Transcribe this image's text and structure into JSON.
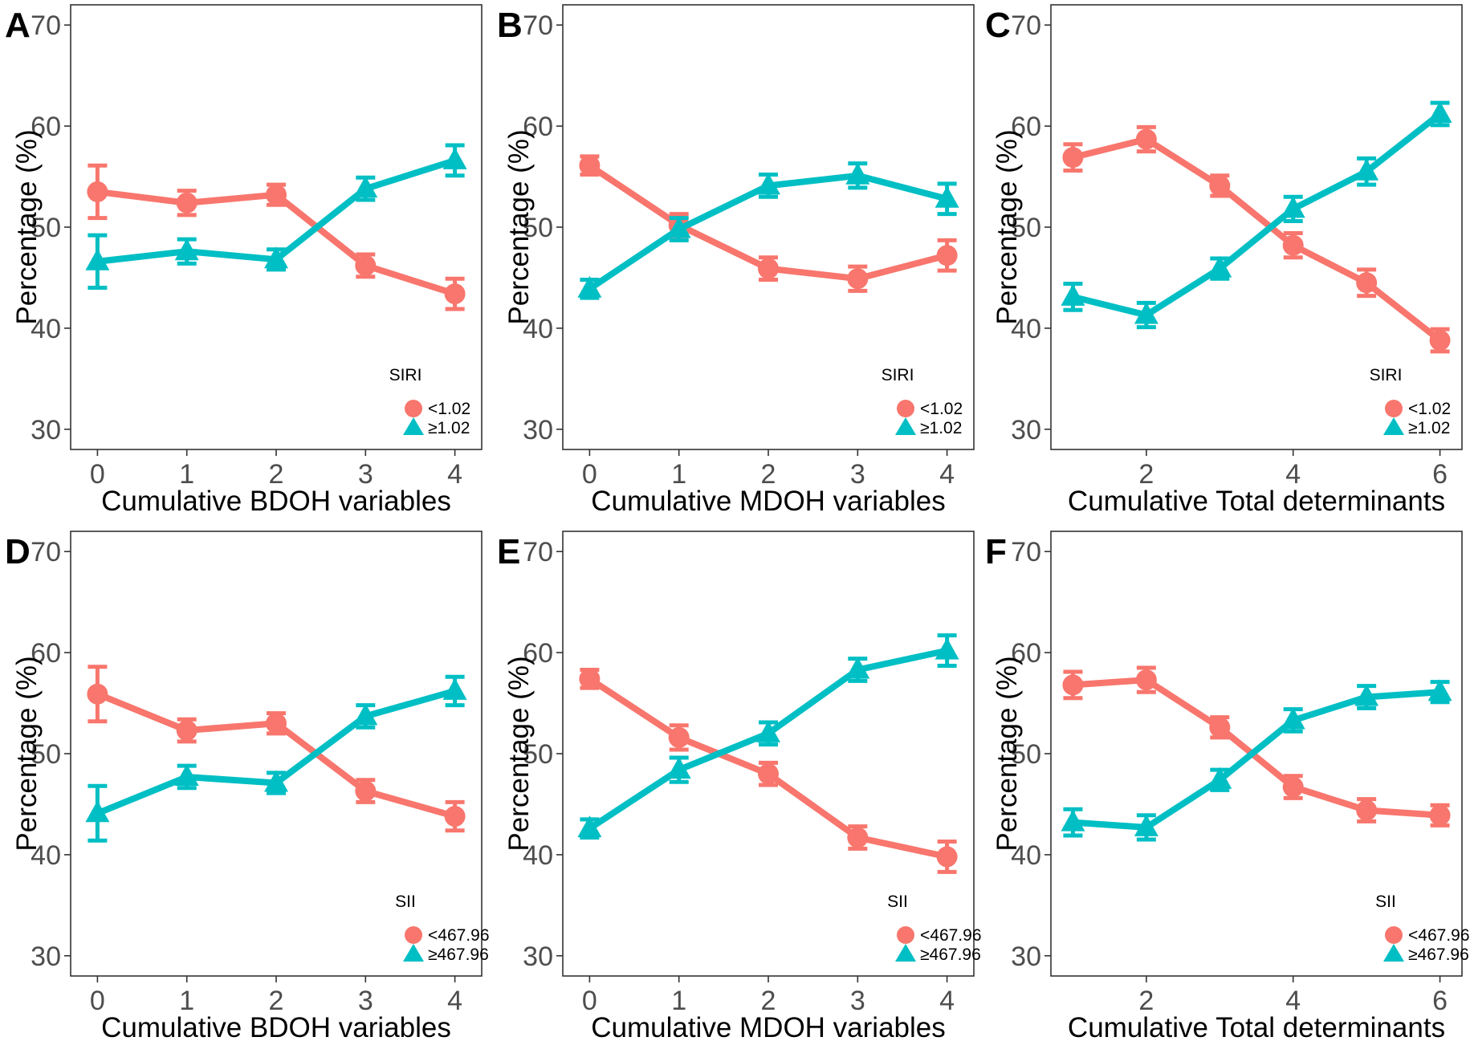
{
  "colors": {
    "low": "#F8766D",
    "high": "#00BFC4"
  },
  "chart_data": [
    {
      "panel": "A",
      "type": "line",
      "xlabel": "Cumulative BDOH variables",
      "ylabel": "Percentage (%)",
      "x": [
        0,
        1,
        2,
        3,
        4
      ],
      "xticks": [
        0,
        1,
        2,
        3,
        4
      ],
      "xlim": [
        -0.3,
        4.3
      ],
      "ylim": [
        28,
        72
      ],
      "yticks": [
        30,
        40,
        50,
        60,
        70
      ],
      "legend_title": "SIRI",
      "legend_position": "bottom-right",
      "series": [
        {
          "name": "<1.02",
          "marker": "circle",
          "values": [
            53.5,
            52.4,
            53.2,
            46.2,
            43.4
          ],
          "errors": [
            2.6,
            1.2,
            1.0,
            1.1,
            1.5
          ]
        },
        {
          "name": "≥1.02",
          "marker": "triangle",
          "values": [
            46.6,
            47.6,
            46.8,
            53.8,
            56.6
          ],
          "errors": [
            2.6,
            1.2,
            1.0,
            1.1,
            1.5
          ]
        }
      ]
    },
    {
      "panel": "B",
      "type": "line",
      "xlabel": "Cumulative MDOH variables",
      "ylabel": "Percentage (%)",
      "x": [
        0,
        1,
        2,
        3,
        4
      ],
      "xticks": [
        0,
        1,
        2,
        3,
        4
      ],
      "xlim": [
        -0.3,
        4.3
      ],
      "ylim": [
        28,
        72
      ],
      "yticks": [
        30,
        40,
        50,
        60,
        70
      ],
      "legend_title": "SIRI",
      "legend_position": "bottom-right",
      "series": [
        {
          "name": "<1.02",
          "marker": "circle",
          "values": [
            56.1,
            50.2,
            45.9,
            44.9,
            47.2
          ],
          "errors": [
            0.9,
            1.1,
            1.1,
            1.2,
            1.5
          ]
        },
        {
          "name": "≥1.02",
          "marker": "triangle",
          "values": [
            43.9,
            49.8,
            54.1,
            55.1,
            52.8
          ],
          "errors": [
            0.9,
            1.1,
            1.1,
            1.2,
            1.5
          ]
        }
      ]
    },
    {
      "panel": "C",
      "type": "line",
      "xlabel": "Cumulative Total determinants",
      "ylabel": "Percentage (%)",
      "x": [
        1,
        2,
        3,
        4,
        5,
        6
      ],
      "xticks": [
        2,
        4,
        6
      ],
      "xlim": [
        0.7,
        6.3
      ],
      "ylim": [
        28,
        72
      ],
      "yticks": [
        30,
        40,
        50,
        60,
        70
      ],
      "legend_title": "SIRI",
      "legend_position": "bottom-right",
      "series": [
        {
          "name": "<1.02",
          "marker": "circle",
          "values": [
            56.9,
            58.7,
            54.1,
            48.2,
            44.5,
            38.8
          ],
          "errors": [
            1.3,
            1.2,
            1.0,
            1.2,
            1.3,
            1.1
          ]
        },
        {
          "name": "≥1.02",
          "marker": "triangle",
          "values": [
            43.1,
            41.3,
            45.9,
            51.8,
            55.5,
            61.2
          ],
          "errors": [
            1.3,
            1.2,
            1.0,
            1.2,
            1.3,
            1.1
          ]
        }
      ]
    },
    {
      "panel": "D",
      "type": "line",
      "xlabel": "Cumulative BDOH variables",
      "ylabel": "Percentage (%)",
      "x": [
        0,
        1,
        2,
        3,
        4
      ],
      "xticks": [
        0,
        1,
        2,
        3,
        4
      ],
      "xlim": [
        -0.3,
        4.3
      ],
      "ylim": [
        28,
        72
      ],
      "yticks": [
        30,
        40,
        50,
        60,
        70
      ],
      "legend_title": "SII",
      "legend_position": "bottom-right",
      "series": [
        {
          "name": "<467.96",
          "marker": "circle",
          "values": [
            55.9,
            52.3,
            53.0,
            46.3,
            43.8
          ],
          "errors": [
            2.7,
            1.1,
            1.0,
            1.1,
            1.4
          ]
        },
        {
          "name": "≥467.96",
          "marker": "triangle",
          "values": [
            44.1,
            47.7,
            47.1,
            53.7,
            56.2
          ],
          "errors": [
            2.7,
            1.1,
            1.0,
            1.1,
            1.4
          ]
        }
      ]
    },
    {
      "panel": "E",
      "type": "line",
      "xlabel": "Cumulative MDOH variables",
      "ylabel": "Percentage (%)",
      "x": [
        0,
        1,
        2,
        3,
        4
      ],
      "xticks": [
        0,
        1,
        2,
        3,
        4
      ],
      "xlim": [
        -0.3,
        4.3
      ],
      "ylim": [
        28,
        72
      ],
      "yticks": [
        30,
        40,
        50,
        60,
        70
      ],
      "legend_title": "SII",
      "legend_position": "bottom-right",
      "series": [
        {
          "name": "<467.96",
          "marker": "circle",
          "values": [
            57.4,
            51.6,
            48.0,
            41.7,
            39.8
          ],
          "errors": [
            0.9,
            1.2,
            1.1,
            1.1,
            1.5
          ]
        },
        {
          "name": "≥467.96",
          "marker": "triangle",
          "values": [
            42.6,
            48.4,
            52.0,
            58.3,
            60.2
          ],
          "errors": [
            0.9,
            1.2,
            1.1,
            1.1,
            1.5
          ]
        }
      ]
    },
    {
      "panel": "F",
      "type": "line",
      "xlabel": "Cumulative Total determinants",
      "ylabel": "Percentage (%)",
      "x": [
        1,
        2,
        3,
        4,
        5,
        6
      ],
      "xticks": [
        2,
        4,
        6
      ],
      "xlim": [
        0.7,
        6.3
      ],
      "ylim": [
        28,
        72
      ],
      "yticks": [
        30,
        40,
        50,
        60,
        70
      ],
      "legend_title": "SII",
      "legend_position": "bottom-right",
      "series": [
        {
          "name": "<467.96",
          "marker": "circle",
          "values": [
            56.8,
            57.3,
            52.6,
            46.7,
            44.4,
            43.9
          ],
          "errors": [
            1.3,
            1.2,
            1.0,
            1.1,
            1.1,
            1.0
          ]
        },
        {
          "name": "≥467.96",
          "marker": "triangle",
          "values": [
            43.2,
            42.7,
            47.4,
            53.3,
            55.6,
            56.1
          ],
          "errors": [
            1.3,
            1.2,
            1.0,
            1.1,
            1.1,
            1.0
          ]
        }
      ]
    }
  ]
}
